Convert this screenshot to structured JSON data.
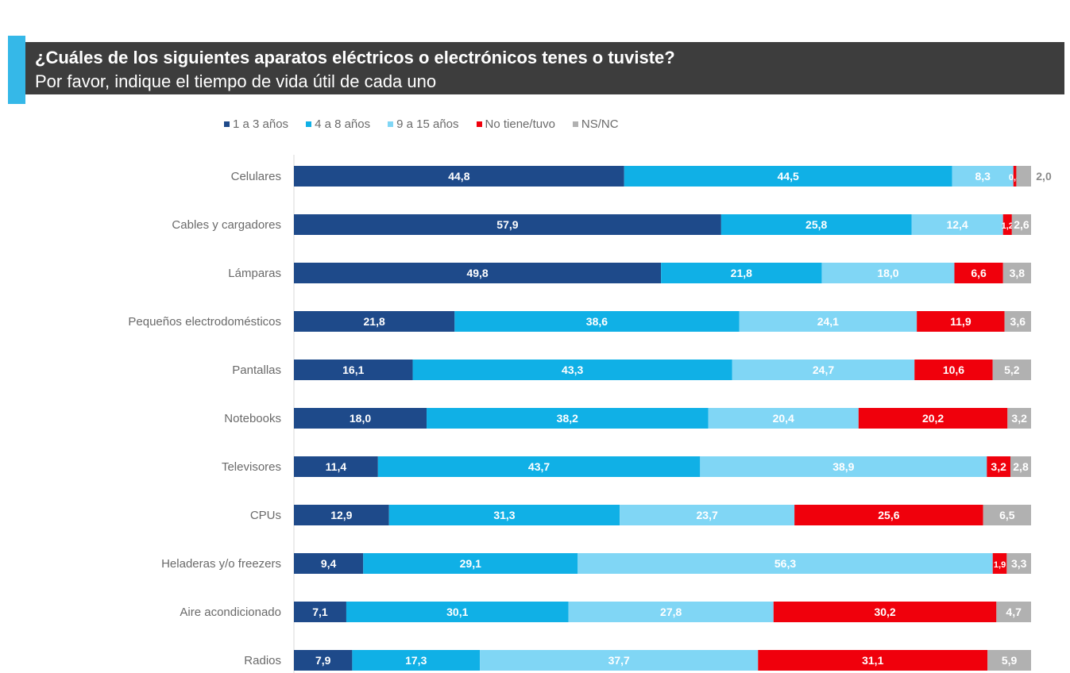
{
  "header": {
    "title": "¿Cuáles de los siguientes aparatos eléctricos o electrónicos tenes o tuviste?",
    "subtitle": "Por favor, indique el tiempo de vida útil de cada uno"
  },
  "colors": {
    "header_bg": "#3d3d3d",
    "accent": "#35b8e8",
    "series": [
      "#1e4a8a",
      "#10b0e6",
      "#80d6f5",
      "#f0000c",
      "#b1b1b1"
    ]
  },
  "chart_data": {
    "type": "bar",
    "orientation": "horizontal",
    "stacked": true,
    "percent_stacked": true,
    "legend_position": "top",
    "grid": false,
    "categories": [
      "Celulares",
      "Cables y cargadores",
      "Lámparas",
      "Pequeños electrodomésticos",
      "Pantallas",
      "Notebooks",
      "Televisores",
      "CPUs",
      "Heladeras y/o freezers",
      "Aire acondicionado",
      "Radios"
    ],
    "series": [
      {
        "name": "1 a 3 años",
        "values": [
          44.8,
          57.9,
          49.8,
          21.8,
          16.1,
          18.0,
          11.4,
          12.9,
          9.4,
          7.1,
          7.9
        ],
        "labels": [
          "44,8",
          "57,9",
          "49,8",
          "21,8",
          "16,1",
          "18,0",
          "11,4",
          "12,9",
          "9,4",
          "7,1",
          "7,9"
        ]
      },
      {
        "name": "4 a 8 años",
        "values": [
          44.5,
          25.8,
          21.8,
          38.6,
          43.3,
          38.2,
          43.7,
          31.3,
          29.1,
          30.1,
          17.3
        ],
        "labels": [
          "44,5",
          "25,8",
          "21,8",
          "38,6",
          "43,3",
          "38,2",
          "43,7",
          "31,3",
          "29,1",
          "30,1",
          "17,3"
        ]
      },
      {
        "name": "9 a 15 años",
        "values": [
          8.3,
          12.4,
          18.0,
          24.1,
          24.7,
          20.4,
          38.9,
          23.7,
          56.3,
          27.8,
          37.7
        ],
        "labels": [
          "8,3",
          "12,4",
          "18,0",
          "24,1",
          "24,7",
          "20,4",
          "38,9",
          "23,7",
          "56,3",
          "27,8",
          "37,7"
        ]
      },
      {
        "name": "No tiene/tuvo",
        "values": [
          0.4,
          1.2,
          6.6,
          11.9,
          10.6,
          20.2,
          3.2,
          25.6,
          1.9,
          30.2,
          31.1
        ],
        "labels": [
          "0,4",
          "1,2",
          "6,6",
          "11,9",
          "10,6",
          "20,2",
          "3,2",
          "25,6",
          "1,9",
          "30,2",
          "31,1"
        ]
      },
      {
        "name": "NS/NC",
        "values": [
          2.0,
          2.6,
          3.8,
          3.6,
          5.2,
          3.2,
          2.8,
          6.5,
          3.3,
          4.7,
          5.9
        ],
        "labels": [
          "2,0",
          "2,6",
          "3,8",
          "3,6",
          "5,2",
          "3,2",
          "2,8",
          "6,5",
          "3,3",
          "4,7",
          "5,9"
        ]
      }
    ]
  }
}
